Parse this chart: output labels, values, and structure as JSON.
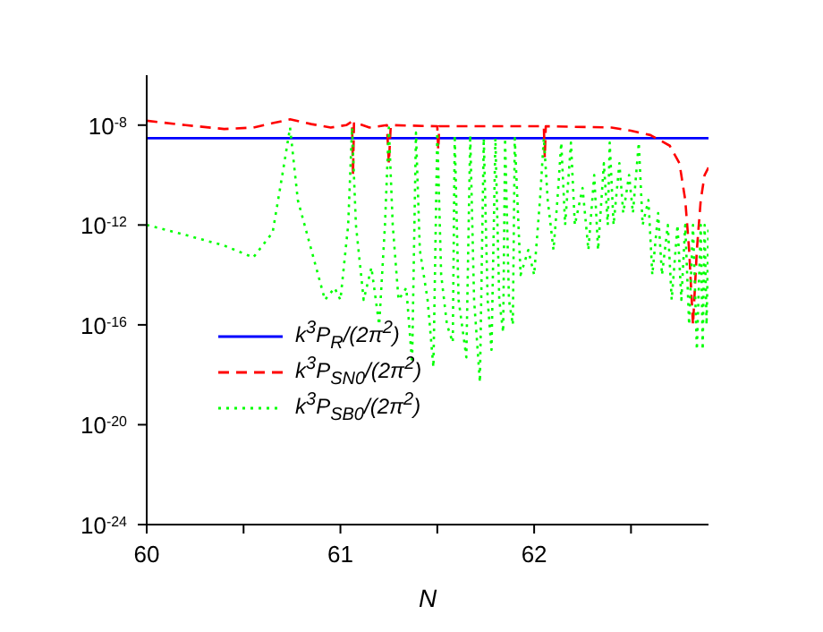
{
  "chart_data": {
    "type": "line",
    "xlabel": "N",
    "log": "y",
    "xlim": [
      60,
      62.9
    ],
    "xticks": [
      60,
      {
        "value": 60.5,
        "label": null
      },
      61,
      {
        "value": 61.5,
        "label": null
      },
      62,
      {
        "value": 62.5,
        "label": null
      }
    ],
    "ylim": [
      1e-24,
      1e-06
    ],
    "yticks": [
      {
        "value": 1e-24,
        "label": "10$^{-24}$"
      },
      {
        "value": 1e-20,
        "label": "10$^{-20}$"
      },
      {
        "value": 1e-16,
        "label": "10$^{-16}$"
      },
      {
        "value": 1e-12,
        "label": "10$^{-12}$"
      },
      {
        "value": 1e-08,
        "label": "10$^{-8}$"
      }
    ],
    "grid": false,
    "legend": "bottom left",
    "marker": "none",
    "series": [
      {
        "name": "k$^{3}$P$_{R}$/(2π$^{2}$)",
        "color": "#0000ff",
        "line_style": "solid",
        "x": [
          60,
          62.9
        ],
        "values": [
          3e-09,
          3e-09
        ]
      },
      {
        "name": "k$^{3}$P$_{SN0}$/(2π$^{2}$)",
        "color": "#ff0000",
        "line_style": "dashed",
        "x": [
          60,
          60.2,
          60.4,
          60.55,
          60.65,
          60.74,
          60.85,
          60.95,
          61.03,
          61.06,
          61.065,
          61.07,
          61.15,
          61.24,
          61.25,
          61.26,
          61.5,
          61.505,
          61.51,
          62.05,
          62.055,
          62.06,
          62.4,
          62.5,
          62.6,
          62.7,
          62.75,
          62.78,
          62.8,
          62.82,
          62.84,
          62.86,
          62.88,
          62.9
        ],
        "values": [
          1.5e-08,
          1e-08,
          7e-09,
          8e-09,
          1.2e-08,
          1.7e-08,
          1.1e-08,
          8e-09,
          1e-08,
          1.4e-08,
          1e-10,
          1.3e-08,
          8e-09,
          1e-08,
          3e-10,
          1e-08,
          9e-09,
          1e-09,
          9e-09,
          9e-09,
          5e-10,
          9e-09,
          8e-09,
          6e-09,
          4e-09,
          1.5e-09,
          3e-10,
          1e-11,
          1e-13,
          1e-16,
          1e-13,
          1e-11,
          1e-10,
          2e-10
        ]
      },
      {
        "name": "k$^{3}$P$_{SB0}$/(2π$^{2}$)",
        "color": "#00ff00",
        "line_style": "dotted",
        "x": [
          60,
          60.2,
          60.4,
          60.55,
          60.65,
          60.7,
          60.74,
          60.78,
          60.85,
          60.92,
          60.97,
          61.0,
          61.04,
          61.06,
          61.08,
          61.12,
          61.16,
          61.2,
          61.23,
          61.25,
          61.27,
          61.3,
          61.34,
          61.37,
          61.39,
          61.41,
          61.45,
          61.48,
          61.5,
          61.52,
          61.55,
          61.58,
          61.59,
          61.61,
          61.65,
          61.67,
          61.69,
          61.72,
          61.74,
          61.76,
          61.78,
          61.8,
          61.82,
          61.84,
          61.85,
          61.87,
          61.89,
          61.9,
          61.93,
          61.97,
          62.0,
          62.03,
          62.05,
          62.07,
          62.1,
          62.12,
          62.14,
          62.16,
          62.19,
          62.21,
          62.25,
          62.28,
          62.31,
          62.33,
          62.36,
          62.38,
          62.39,
          62.41,
          62.44,
          62.46,
          62.49,
          62.51,
          62.54,
          62.56,
          62.59,
          62.61,
          62.64,
          62.66,
          62.69,
          62.71,
          62.74,
          62.76,
          62.78,
          62.8,
          62.82,
          62.84,
          62.86,
          62.87,
          62.88,
          62.89,
          62.9
        ],
        "values": [
          1e-12,
          4e-13,
          1.5e-13,
          5e-14,
          5e-13,
          1e-10,
          8e-09,
          1e-11,
          1e-13,
          1e-15,
          3e-15,
          1e-15,
          1e-12,
          8e-09,
          1e-12,
          1e-15,
          2e-14,
          1e-16,
          1e-12,
          8e-09,
          1e-12,
          1e-15,
          3e-15,
          3e-18,
          5e-09,
          1e-13,
          1e-15,
          2e-18,
          5e-09,
          1e-14,
          1e-16,
          2e-17,
          4e-09,
          1e-15,
          5e-18,
          4e-09,
          1e-15,
          5e-19,
          3e-09,
          1e-15,
          1e-17,
          3e-09,
          1e-15,
          5e-17,
          3e-09,
          1e-15,
          1e-16,
          3e-09,
          1e-14,
          1e-13,
          1e-14,
          1e-11,
          3e-09,
          1e-11,
          1e-13,
          1e-11,
          2e-09,
          1e-12,
          2e-09,
          1e-12,
          3e-11,
          1e-13,
          1e-10,
          1e-13,
          3e-10,
          1e-12,
          2e-09,
          1e-12,
          3e-10,
          3e-12,
          1e-10,
          3e-12,
          2e-09,
          1e-12,
          1e-11,
          1e-14,
          3e-12,
          1e-14,
          1e-12,
          1e-15,
          1e-12,
          1e-15,
          1e-12,
          1e-16,
          1e-12,
          1e-17,
          1e-12,
          1e-17,
          1e-12,
          1e-16,
          1e-12
        ]
      }
    ]
  }
}
